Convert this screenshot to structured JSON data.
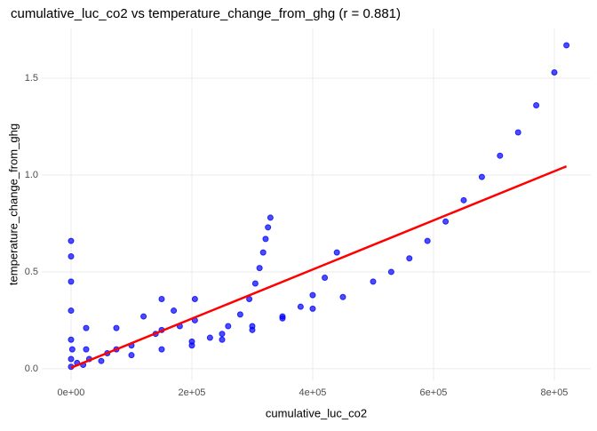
{
  "chart_data": {
    "type": "scatter",
    "title": "cumulative_luc_co2 vs temperature_change_from_ghg (r = 0.881)",
    "x_label": "cumulative_luc_co2",
    "y_label": "temperature_change_from_ghg",
    "xlim": [
      -48500,
      860300
    ],
    "ylim": [
      -0.06,
      1.757
    ],
    "xticks": [
      {
        "value": 0,
        "label": "0e+00"
      },
      {
        "value": 200000,
        "label": "2e+05"
      },
      {
        "value": 400000,
        "label": "4e+05"
      },
      {
        "value": 600000,
        "label": "6e+05"
      },
      {
        "value": 800000,
        "label": "8e+05"
      }
    ],
    "yticks": [
      {
        "value": 0,
        "label": "0.0"
      },
      {
        "value": 0.5,
        "label": "0.5"
      },
      {
        "value": 1,
        "label": "1.0"
      },
      {
        "value": 1.5,
        "label": "1.5"
      }
    ],
    "grid": true,
    "series": [
      {
        "color": "#0000ff",
        "x": [
          0,
          20000,
          50000,
          100000,
          150000,
          200000,
          250000,
          300000,
          350000,
          400000,
          450000,
          500000,
          530000,
          560000,
          590000,
          620000,
          650000,
          680000,
          710000,
          740000,
          770000,
          800000,
          820000,
          250000,
          300000,
          350000,
          380000,
          400000,
          420000,
          440000,
          200000,
          230000,
          260000,
          280000,
          295000,
          305000,
          312000,
          318000,
          322000,
          326000,
          330000,
          0,
          0,
          0,
          0,
          0,
          0,
          2000,
          25000,
          25000,
          75000,
          75000,
          120000,
          150000,
          150000,
          170000,
          205000,
          205000,
          180000,
          140000,
          100000,
          60000,
          30000,
          10000
        ],
        "y": [
          0.01,
          0.02,
          0.04,
          0.07,
          0.1,
          0.14,
          0.18,
          0.22,
          0.27,
          0.31,
          0.37,
          0.45,
          0.5,
          0.57,
          0.66,
          0.76,
          0.87,
          0.99,
          1.1,
          1.22,
          1.36,
          1.53,
          1.67,
          0.15,
          0.2,
          0.26,
          0.32,
          0.38,
          0.47,
          0.6,
          0.12,
          0.16,
          0.22,
          0.28,
          0.36,
          0.44,
          0.52,
          0.6,
          0.67,
          0.73,
          0.78,
          0.05,
          0.15,
          0.3,
          0.45,
          0.58,
          0.66,
          0.1,
          0.1,
          0.21,
          0.1,
          0.21,
          0.27,
          0.2,
          0.36,
          0.3,
          0.25,
          0.36,
          0.22,
          0.18,
          0.12,
          0.08,
          0.05,
          0.03
        ]
      }
    ],
    "trend_line": {
      "color": "#ff0000",
      "x": [
        0,
        820000
      ],
      "y": [
        0.005,
        1.045
      ]
    }
  }
}
